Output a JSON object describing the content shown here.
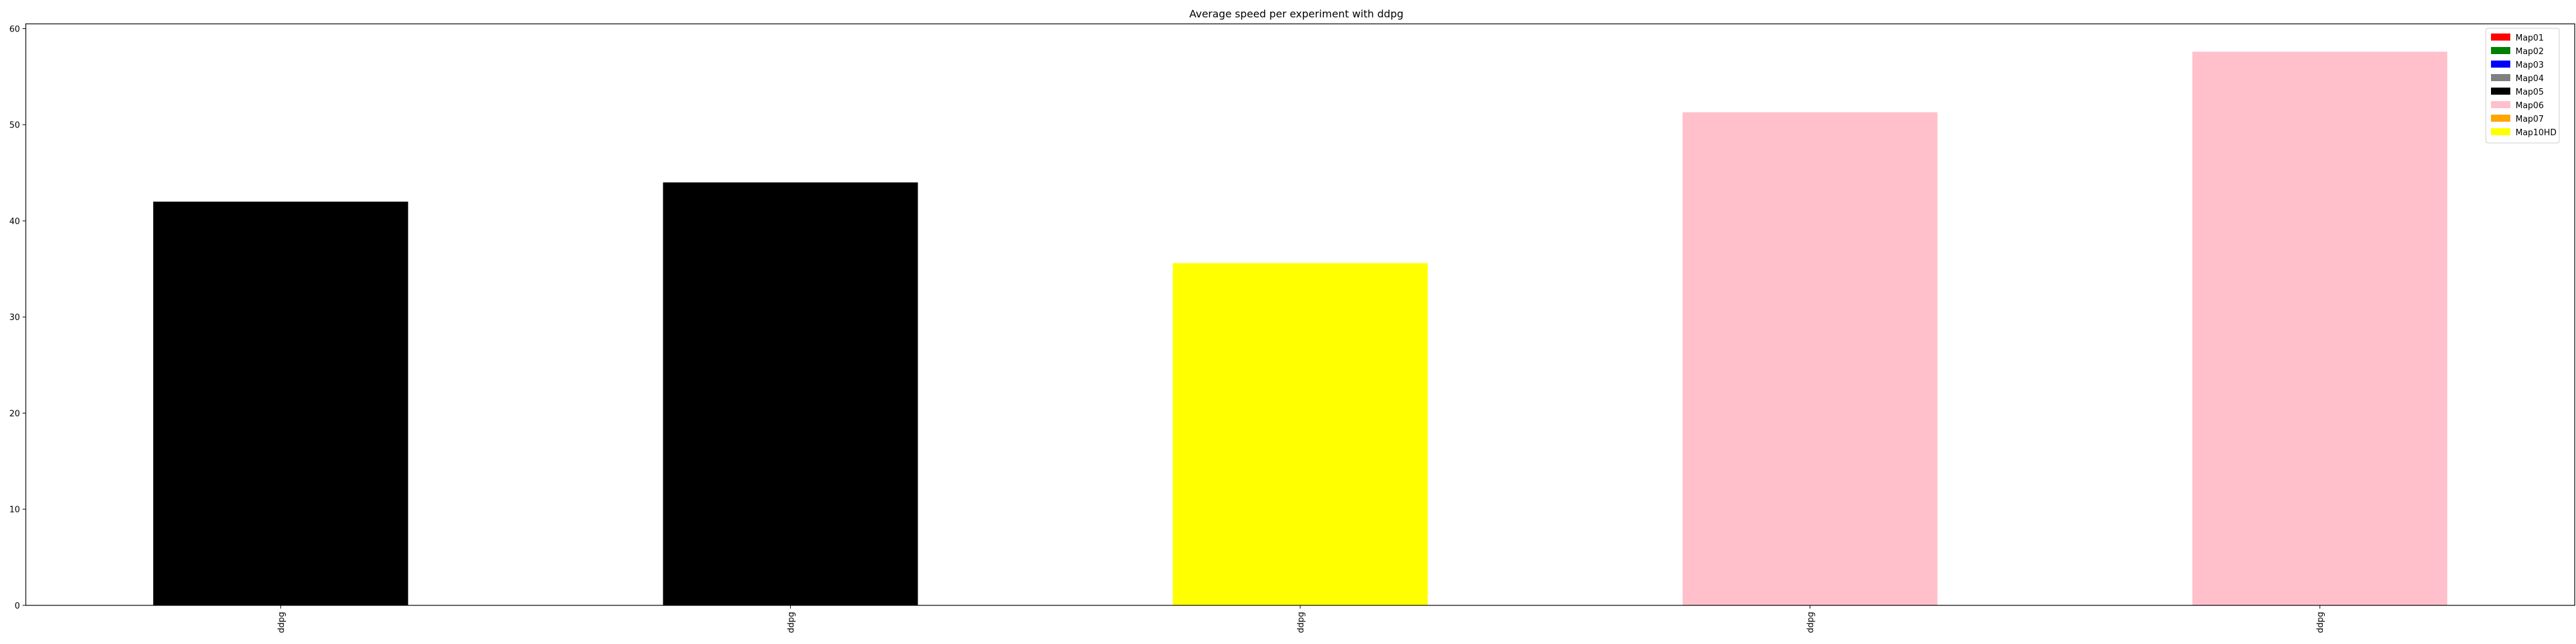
{
  "chart_data": {
    "type": "bar",
    "title": "Average speed per experiment with ddpg",
    "xlabel": "",
    "ylabel": "",
    "categories": [
      "ddpg",
      "ddpg",
      "ddpg",
      "ddpg",
      "ddpg"
    ],
    "values": [
      42.0,
      44.0,
      35.6,
      51.3,
      57.6
    ],
    "bar_colors": [
      "#000000",
      "#000000",
      "#ffff00",
      "#ffc0cb",
      "#ffc0cb"
    ],
    "ylim": [
      0,
      60.5
    ],
    "yticks": [
      0,
      10,
      20,
      30,
      40,
      50,
      60
    ],
    "grid": false,
    "legend_position": "top-right",
    "legend": [
      {
        "label": "Map01",
        "color": "#ff0000"
      },
      {
        "label": "Map02",
        "color": "#008000"
      },
      {
        "label": "Map03",
        "color": "#0000ff"
      },
      {
        "label": "Map04",
        "color": "#808080"
      },
      {
        "label": "Map05",
        "color": "#000000"
      },
      {
        "label": "Map06",
        "color": "#ffc0cb"
      },
      {
        "label": "Map07",
        "color": "#ffa500"
      },
      {
        "label": "Map10HD",
        "color": "#ffff00"
      }
    ]
  }
}
